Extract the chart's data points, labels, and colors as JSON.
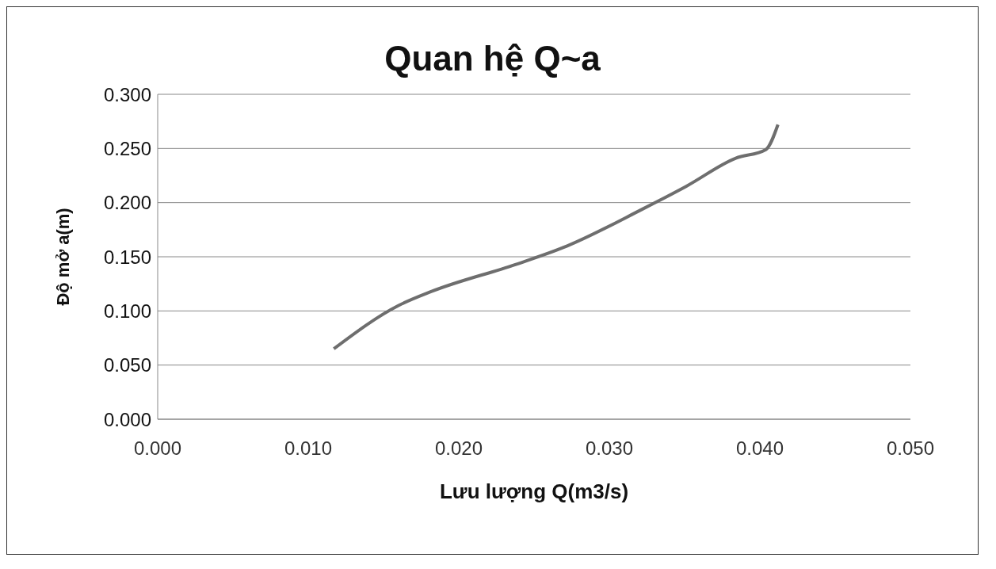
{
  "chart_data": {
    "type": "line",
    "title": "Quan hệ Q~a",
    "xlabel": "Lưu lượng Q(m3/s)",
    "ylabel": "Độ mở a(m)",
    "x": [
      0.0117,
      0.016,
      0.0182,
      0.0238,
      0.0272,
      0.0322,
      0.0351,
      0.0384,
      0.0404,
      0.0412
    ],
    "series": [
      {
        "color": "#6e6e6e",
        "values": [
          0.065,
          0.105,
          0.118,
          0.143,
          0.16,
          0.194,
          0.215,
          0.241,
          0.249,
          0.272
        ]
      }
    ],
    "xlim": [
      0,
      0.05
    ],
    "ylim": [
      0,
      0.3
    ],
    "xticks": [
      {
        "value": 0,
        "label": "0.000"
      },
      {
        "value": 0.01,
        "label": "0.010"
      },
      {
        "value": 0.02,
        "label": "0.020"
      },
      {
        "value": 0.03,
        "label": "0.030"
      },
      {
        "value": 0.04,
        "label": "0.040"
      },
      {
        "value": 0.05,
        "label": "0.050"
      }
    ],
    "yticks": [
      {
        "value": 0,
        "label": "0.000"
      },
      {
        "value": 0.05,
        "label": "0.050"
      },
      {
        "value": 0.1,
        "label": "0.100"
      },
      {
        "value": 0.15,
        "label": "0.150"
      },
      {
        "value": 0.2,
        "label": "0.200"
      },
      {
        "value": 0.25,
        "label": "0.250"
      },
      {
        "value": 0.3,
        "label": "0.300"
      }
    ],
    "grid": "y",
    "marker": "none",
    "line_style": "solid"
  }
}
